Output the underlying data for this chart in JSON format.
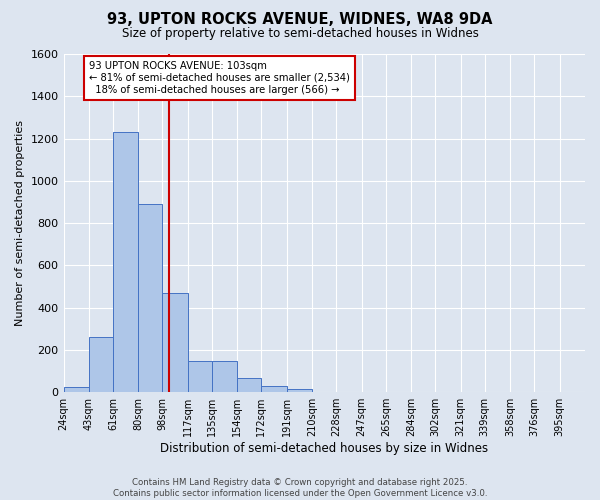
{
  "title": "93, UPTON ROCKS AVENUE, WIDNES, WA8 9DA",
  "subtitle": "Size of property relative to semi-detached houses in Widnes",
  "xlabel": "Distribution of semi-detached houses by size in Widnes",
  "ylabel": "Number of semi-detached properties",
  "bin_labels": [
    "24sqm",
    "43sqm",
    "61sqm",
    "80sqm",
    "98sqm",
    "117sqm",
    "135sqm",
    "154sqm",
    "172sqm",
    "191sqm",
    "210sqm",
    "228sqm",
    "247sqm",
    "265sqm",
    "284sqm",
    "302sqm",
    "321sqm",
    "339sqm",
    "358sqm",
    "376sqm",
    "395sqm"
  ],
  "bin_edges": [
    24,
    43,
    61,
    80,
    98,
    117,
    135,
    154,
    172,
    191,
    210,
    228,
    247,
    265,
    284,
    302,
    321,
    339,
    358,
    376,
    395
  ],
  "bar_heights": [
    25,
    260,
    1230,
    890,
    470,
    150,
    150,
    65,
    30,
    15,
    0,
    0,
    0,
    0,
    0,
    0,
    0,
    0,
    0,
    0
  ],
  "bar_color": "#aec6e8",
  "bar_edge_color": "#4472c4",
  "vline_x": 103,
  "vline_color": "#cc0000",
  "annotation_text": "93 UPTON ROCKS AVENUE: 103sqm\n← 81% of semi-detached houses are smaller (2,534)\n  18% of semi-detached houses are larger (566) →",
  "annotation_box_color": "#ffffff",
  "annotation_box_edge_color": "#cc0000",
  "ylim": [
    0,
    1600
  ],
  "yticks": [
    0,
    200,
    400,
    600,
    800,
    1000,
    1200,
    1400,
    1600
  ],
  "background_color": "#dde5f0",
  "grid_color": "#ffffff",
  "footer_line1": "Contains HM Land Registry data © Crown copyright and database right 2025.",
  "footer_line2": "Contains public sector information licensed under the Open Government Licence v3.0."
}
